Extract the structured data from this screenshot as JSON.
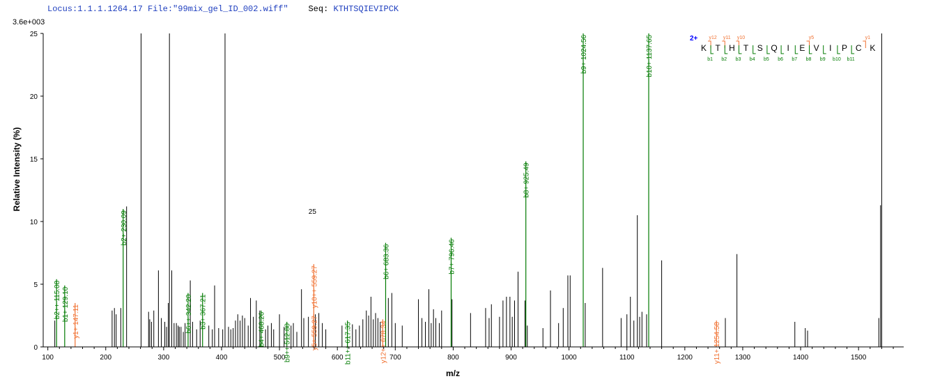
{
  "header": {
    "locus": "Locus:1.1.1.1264.17",
    "file": "File:\"99mix_gel_ID_002.wiff\"",
    "seq_label": "Seq:",
    "seq_value": "KTHTSQIEVIPCK"
  },
  "colors": {
    "b_ion": "#007a00",
    "y_ion": "#f07030",
    "peak": "#000000",
    "header": "#1f3fbf",
    "charge": "#0000ff"
  },
  "chart_data": {
    "type": "bar",
    "max_intensity_label": "3.6e+003",
    "xlabel": "m/z",
    "ylabel": "Relative Intensity (%)",
    "xlim": [
      92,
      1578
    ],
    "ylim": [
      0,
      25
    ],
    "x_ticks": [
      100,
      200,
      300,
      400,
      500,
      600,
      700,
      800,
      900,
      1000,
      1100,
      1200,
      1300,
      1400,
      1500
    ],
    "y_ticks": [
      0,
      5,
      10,
      15,
      20,
      25
    ],
    "peaks": [
      [
        112,
        2.1
      ],
      [
        211,
        2.9
      ],
      [
        215,
        3.1
      ],
      [
        218,
        2.6
      ],
      [
        226,
        3.1
      ],
      [
        236,
        11.2
      ],
      [
        261,
        25
      ],
      [
        274,
        2.8
      ],
      [
        276,
        2.2
      ],
      [
        279,
        2.0
      ],
      [
        283,
        2.9
      ],
      [
        291,
        6.1
      ],
      [
        296,
        2.3
      ],
      [
        302,
        2.0
      ],
      [
        305,
        1.6
      ],
      [
        308,
        3.5
      ],
      [
        310,
        25
      ],
      [
        314,
        6.1
      ],
      [
        318,
        1.9
      ],
      [
        322,
        1.9
      ],
      [
        325,
        1.7
      ],
      [
        327,
        1.6
      ],
      [
        330,
        1.6
      ],
      [
        334,
        1.2
      ],
      [
        337,
        1.9
      ],
      [
        346,
        5.3
      ],
      [
        350,
        2.0
      ],
      [
        357,
        1.4
      ],
      [
        363,
        2.1
      ],
      [
        378,
        1.7
      ],
      [
        384,
        1.4
      ],
      [
        388,
        4.9
      ],
      [
        395,
        1.5
      ],
      [
        402,
        1.4
      ],
      [
        406,
        25
      ],
      [
        412,
        1.6
      ],
      [
        416,
        1.4
      ],
      [
        420,
        1.5
      ],
      [
        424,
        2.1
      ],
      [
        428,
        2.6
      ],
      [
        432,
        2.1
      ],
      [
        436,
        2.5
      ],
      [
        440,
        2.3
      ],
      [
        446,
        1.7
      ],
      [
        450,
        3.9
      ],
      [
        455,
        2.4
      ],
      [
        460,
        3.7
      ],
      [
        466,
        2.9
      ],
      [
        476,
        1.4
      ],
      [
        480,
        1.7
      ],
      [
        486,
        1.9
      ],
      [
        490,
        1.4
      ],
      [
        500,
        2.6
      ],
      [
        508,
        1.6
      ],
      [
        520,
        1.7
      ],
      [
        524,
        1.9
      ],
      [
        530,
        1.2
      ],
      [
        538,
        4.6
      ],
      [
        542,
        2.3
      ],
      [
        550,
        2.4
      ],
      [
        562,
        2.6
      ],
      [
        568,
        2.7
      ],
      [
        574,
        1.9
      ],
      [
        580,
        1.4
      ],
      [
        608,
        1.7
      ],
      [
        626,
        1.8
      ],
      [
        632,
        1.4
      ],
      [
        638,
        1.7
      ],
      [
        644,
        2.2
      ],
      [
        650,
        2.9
      ],
      [
        654,
        2.5
      ],
      [
        658,
        4.0
      ],
      [
        662,
        2.2
      ],
      [
        666,
        2.7
      ],
      [
        670,
        2.3
      ],
      [
        674,
        2.0
      ],
      [
        688,
        3.9
      ],
      [
        694,
        4.3
      ],
      [
        700,
        1.9
      ],
      [
        712,
        1.7
      ],
      [
        740,
        3.8
      ],
      [
        746,
        2.3
      ],
      [
        752,
        2.0
      ],
      [
        758,
        4.6
      ],
      [
        762,
        1.9
      ],
      [
        766,
        3.0
      ],
      [
        770,
        2.3
      ],
      [
        776,
        1.9
      ],
      [
        780,
        2.9
      ],
      [
        798,
        3.8
      ],
      [
        830,
        2.7
      ],
      [
        856,
        3.1
      ],
      [
        862,
        2.3
      ],
      [
        866,
        3.4
      ],
      [
        880,
        2.4
      ],
      [
        886,
        3.7
      ],
      [
        892,
        4.0
      ],
      [
        898,
        4.0
      ],
      [
        902,
        2.4
      ],
      [
        906,
        3.7
      ],
      [
        912,
        6.0
      ],
      [
        924,
        3.7
      ],
      [
        928,
        1.7
      ],
      [
        955,
        1.5
      ],
      [
        968,
        4.5
      ],
      [
        982,
        1.9
      ],
      [
        990,
        3.1
      ],
      [
        998,
        5.7
      ],
      [
        1002,
        5.7
      ],
      [
        1028,
        3.5
      ],
      [
        1058,
        6.3
      ],
      [
        1090,
        2.3
      ],
      [
        1100,
        2.6
      ],
      [
        1106,
        4.0
      ],
      [
        1112,
        2.1
      ],
      [
        1118,
        10.5
      ],
      [
        1122,
        2.4
      ],
      [
        1126,
        2.8
      ],
      [
        1134,
        2.6
      ],
      [
        1160,
        6.9
      ],
      [
        1270,
        2.3
      ],
      [
        1290,
        7.4
      ],
      [
        1390,
        2.0
      ],
      [
        1408,
        1.5
      ],
      [
        1412,
        1.3
      ],
      [
        1535,
        2.3
      ],
      [
        1538,
        11.3
      ],
      [
        1540,
        25
      ]
    ],
    "annotations": [
      {
        "mz": 115.08,
        "intensity": 5.4,
        "label": "b2++ 115.08",
        "ion": "b"
      },
      {
        "mz": 129.1,
        "intensity": 4.9,
        "label": "b1+ 129.10",
        "ion": "b"
      },
      {
        "mz": 147.11,
        "intensity": 3.5,
        "label": "y1+ 147.11",
        "ion": "y"
      },
      {
        "mz": 230.09,
        "intensity": 11.0,
        "label": "b2+ 230.09",
        "ion": "b"
      },
      {
        "mz": 342.2,
        "intensity": 4.3,
        "label": "b6++ 342.20",
        "ion": "b"
      },
      {
        "mz": 367.21,
        "intensity": 4.3,
        "label": "b3+ 367.21",
        "ion": "b"
      },
      {
        "mz": 468.26,
        "intensity": 2.9,
        "label": "b4+ 468.26",
        "ion": "b"
      },
      {
        "mz": 512.8,
        "intensity": 2.0,
        "label": "b9++ 512.80",
        "ion": "b"
      },
      {
        "mz": 559.27,
        "intensity": 2.6,
        "label": "y5+ 559.27",
        "ion": "y"
      },
      {
        "mz": 559.27,
        "intensity": 6.6,
        "label": "y10++ 559.27",
        "ion": "y",
        "prefix": "25"
      },
      {
        "mz": 617.35,
        "intensity": 2.1,
        "label": "b11++ 617.35",
        "ion": "b"
      },
      {
        "mz": 678.34,
        "intensity": 2.2,
        "label": "y12++ 678.34",
        "ion": "y"
      },
      {
        "mz": 683.36,
        "intensity": 8.3,
        "label": "b6+ 683.36",
        "ion": "b"
      },
      {
        "mz": 796.46,
        "intensity": 8.7,
        "label": "b7+ 796.46",
        "ion": "b"
      },
      {
        "mz": 925.49,
        "intensity": 14.8,
        "label": "b8+ 925.49",
        "ion": "b"
      },
      {
        "mz": 1024.56,
        "intensity": 25,
        "label": "b9+ 1024.56",
        "ion": "b"
      },
      {
        "mz": 1137.65,
        "intensity": 25,
        "label": "b10+ 1137.65",
        "ion": "b"
      },
      {
        "mz": 1254.58,
        "intensity": 2.1,
        "label": "y11+ 1254.58",
        "ion": "y"
      }
    ],
    "sequence_diagram": {
      "charge": "2+",
      "residues": [
        "K",
        "T",
        "H",
        "T",
        "S",
        "Q",
        "I",
        "E",
        "V",
        "I",
        "P",
        "C",
        "K"
      ],
      "y_marks": [
        {
          "after": 0,
          "label": "y12"
        },
        {
          "after": 1,
          "label": "y11"
        },
        {
          "after": 2,
          "label": "y10"
        },
        {
          "after": 7,
          "label": "y5"
        },
        {
          "after": 11,
          "label": "y1"
        }
      ],
      "b_marks": [
        {
          "after": 0,
          "label": "b1"
        },
        {
          "after": 1,
          "label": "b2"
        },
        {
          "after": 2,
          "label": "b3"
        },
        {
          "after": 3,
          "label": "b4"
        },
        {
          "after": 4,
          "label": "b5"
        },
        {
          "after": 5,
          "label": "b6"
        },
        {
          "after": 6,
          "label": "b7"
        },
        {
          "after": 7,
          "label": "b8"
        },
        {
          "after": 8,
          "label": "b9"
        },
        {
          "after": 9,
          "label": "b10"
        },
        {
          "after": 10,
          "label": "b11"
        }
      ]
    }
  }
}
